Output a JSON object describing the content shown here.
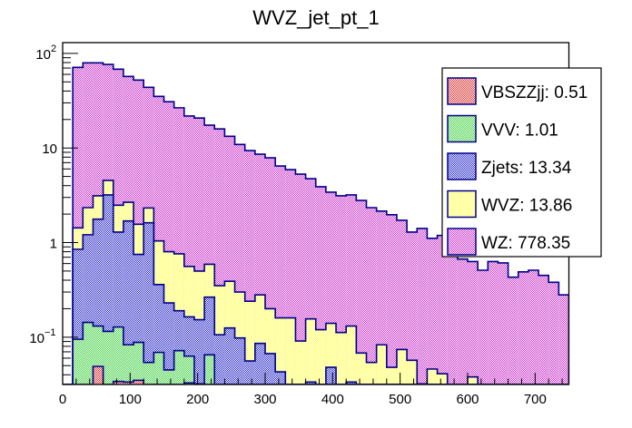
{
  "chart_data": {
    "type": "bar",
    "subtype": "stacked-histogram",
    "title": "WVZ_jet_pt_1",
    "xlabel": "",
    "ylabel": "",
    "xlim": [
      0,
      750
    ],
    "ylim": [
      0.0316,
      130
    ],
    "yscale": "log",
    "bin_width": 15,
    "n_bins": 50,
    "x_ticks": [
      0,
      100,
      200,
      300,
      400,
      500,
      600,
      700
    ],
    "x_tick_labels": [
      "0",
      "100",
      "200",
      "300",
      "400",
      "500",
      "600",
      "700"
    ],
    "y_ticks": [
      0.1,
      1,
      10,
      100
    ],
    "y_tick_labels": [
      {
        "base": "10",
        "exp": "−1"
      },
      {
        "base": "1",
        "exp": ""
      },
      {
        "base": "10",
        "exp": ""
      },
      {
        "base": "10",
        "exp": "2"
      }
    ],
    "grid": false,
    "legend_position": "top-right",
    "stack_order_bottom_to_top": [
      "VBSZZjj",
      "VVV",
      "Zjets",
      "WVZ",
      "WZ"
    ],
    "values_are": "cumulative stack height at top of each layer",
    "series": [
      {
        "name": "VBSZZjj",
        "legend_label": "VBSZZjj: 0.51",
        "integral": 0.51,
        "color": "#d83030",
        "values": [
          0,
          0,
          0,
          0.049,
          0,
          0.034,
          0.0335,
          0.035,
          0,
          0,
          0,
          0,
          0.0328,
          0.032,
          0,
          0,
          0,
          0,
          0,
          0,
          0,
          0,
          0,
          0,
          0,
          0,
          0,
          0,
          0,
          0,
          0,
          0,
          0,
          0,
          0,
          0,
          0,
          0,
          0,
          0,
          0,
          0,
          0,
          0,
          0,
          0,
          0,
          0,
          0,
          0
        ]
      },
      {
        "name": "VVV",
        "legend_label": "VVV: 1.01",
        "integral": 1.01,
        "color": "#40d040",
        "values": [
          0,
          0.095,
          0.143,
          0.131,
          0.115,
          0.128,
          0.083,
          0.088,
          0.054,
          0.069,
          0.045,
          0.072,
          0.063,
          0.032,
          0.065,
          0,
          0,
          0,
          0,
          0,
          0,
          0,
          0,
          0,
          0,
          0,
          0,
          0,
          0,
          0,
          0,
          0,
          0,
          0,
          0,
          0,
          0,
          0,
          0,
          0,
          0,
          0,
          0,
          0,
          0,
          0,
          0,
          0,
          0,
          0
        ]
      },
      {
        "name": "Zjets",
        "legend_label": "Zjets: 13.34",
        "integral": 13.34,
        "color": "#2828c8",
        "values": [
          0,
          0.85,
          1.21,
          1.77,
          3.19,
          1.29,
          1.69,
          0.75,
          1.62,
          0.36,
          0.23,
          0.19,
          0.164,
          0.153,
          0.265,
          0.106,
          0.125,
          0.098,
          0.056,
          0.086,
          0.067,
          0.043,
          0,
          0,
          0.0335,
          0,
          0.048,
          0,
          0.0335,
          0,
          0,
          0,
          0,
          0,
          0,
          0.032,
          0,
          0,
          0,
          0,
          0,
          0,
          0,
          0,
          0,
          0,
          0,
          0,
          0,
          0
        ]
      },
      {
        "name": "WVZ",
        "legend_label": "WVZ: 13.86",
        "integral": 13.86,
        "color": "#ffff50",
        "values": [
          0,
          1.43,
          2.34,
          3.12,
          4.54,
          2.48,
          2.67,
          1.56,
          2.32,
          1.04,
          0.8,
          0.76,
          0.56,
          0.5,
          0.59,
          0.35,
          0.39,
          0.3,
          0.24,
          0.28,
          0.2,
          0.16,
          0.16,
          0.091,
          0.156,
          0.12,
          0.14,
          0.112,
          0.131,
          0.068,
          0.054,
          0.083,
          0.048,
          0.074,
          0.057,
          0.032,
          0.046,
          0.041,
          0,
          0,
          0.038,
          0,
          0,
          0,
          0,
          0,
          0,
          0,
          0,
          0
        ]
      },
      {
        "name": "WZ",
        "legend_label": "WZ: 778.35",
        "integral": 778.35,
        "color": "#c830c8",
        "values": [
          0,
          71.1,
          79.4,
          79.4,
          76.4,
          68.0,
          57.1,
          52.2,
          43.8,
          35.1,
          30.8,
          26.6,
          21.8,
          20.7,
          17.4,
          15.9,
          13.3,
          10.9,
          9.38,
          8.59,
          7.87,
          6.45,
          5.91,
          5.29,
          4.74,
          3.89,
          3.41,
          3.12,
          3.19,
          2.79,
          2.34,
          2.15,
          1.97,
          1.72,
          1.29,
          1.41,
          1.11,
          1.19,
          0.95,
          0.67,
          0.63,
          0.51,
          0.63,
          0.61,
          0.43,
          0.49,
          0.51,
          0.45,
          0.38,
          0.28
        ]
      }
    ],
    "legend_order_top_to_bottom": [
      "VBSZZjj",
      "VVV",
      "Zjets",
      "WVZ",
      "WZ"
    ],
    "outline_color": "#00008b"
  }
}
